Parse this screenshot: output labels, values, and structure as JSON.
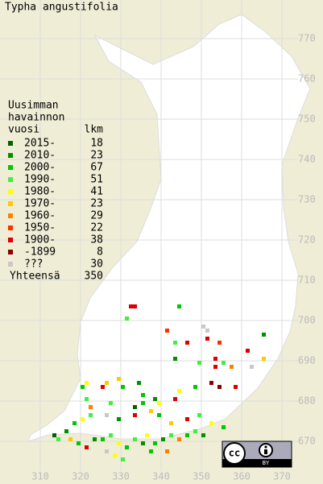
{
  "title": "Typha angustifolia",
  "legend": {
    "header": [
      "Uusimman",
      "havainnon",
      "vuosi"
    ],
    "count_header": "lkm",
    "items": [
      {
        "label": "2015-",
        "count": 18,
        "color": "#006400"
      },
      {
        "label": "2010-",
        "count": 23,
        "color": "#009000"
      },
      {
        "label": "2000-",
        "count": 67,
        "color": "#00c800"
      },
      {
        "label": "1990-",
        "count": 51,
        "color": "#40f040"
      },
      {
        "label": "1980-",
        "count": 41,
        "color": "#ffff00"
      },
      {
        "label": "1970-",
        "count": 23,
        "color": "#ffc800"
      },
      {
        "label": "1960-",
        "count": 29,
        "color": "#ff8000"
      },
      {
        "label": "1950-",
        "count": 22,
        "color": "#ff3000"
      },
      {
        "label": "1900-",
        "count": 38,
        "color": "#dd0000"
      },
      {
        "label": "-1899",
        "count": 8,
        "color": "#880000"
      },
      {
        "label": "???",
        "count": 30,
        "color": "#c8c8c8"
      }
    ],
    "total_label": "Yhteensä",
    "total": 350
  },
  "xticks": [
    310,
    320,
    330,
    340,
    350,
    360,
    370
  ],
  "yticks": [
    670,
    680,
    690,
    700,
    710,
    720,
    730,
    740,
    750,
    760,
    770
  ],
  "badge": {
    "cc": "cc",
    "by": "BY"
  },
  "squares": [
    [
      332,
      703,
      8
    ],
    [
      333,
      703,
      8
    ],
    [
      344,
      703,
      2
    ],
    [
      331,
      700,
      3
    ],
    [
      350,
      698,
      10
    ],
    [
      351,
      697,
      10
    ],
    [
      351,
      695,
      8
    ],
    [
      354,
      694,
      7
    ],
    [
      341,
      697,
      7
    ],
    [
      346,
      694,
      8
    ],
    [
      343,
      694,
      3
    ],
    [
      353,
      690,
      8
    ],
    [
      365,
      690,
      5
    ],
    [
      361,
      692,
      8
    ],
    [
      365,
      696,
      1
    ],
    [
      355,
      689,
      3
    ],
    [
      353,
      688,
      8
    ],
    [
      343,
      690,
      1
    ],
    [
      349,
      689,
      3
    ],
    [
      357,
      688,
      6
    ],
    [
      362,
      688,
      10
    ],
    [
      348,
      683,
      2
    ],
    [
      354,
      683,
      9
    ],
    [
      352,
      684,
      9
    ],
    [
      358,
      683,
      8
    ],
    [
      326,
      684,
      5
    ],
    [
      329,
      685,
      5
    ],
    [
      330,
      683,
      2
    ],
    [
      334,
      684,
      1
    ],
    [
      335,
      681,
      2
    ],
    [
      338,
      680,
      1
    ],
    [
      321,
      684,
      4
    ],
    [
      320,
      683,
      2
    ],
    [
      321,
      680,
      3
    ],
    [
      322,
      678,
      6
    ],
    [
      325,
      683,
      8
    ],
    [
      327,
      679,
      3
    ],
    [
      333,
      678,
      0
    ],
    [
      335,
      679,
      2
    ],
    [
      337,
      677,
      5
    ],
    [
      339,
      679,
      4
    ],
    [
      344,
      682,
      4
    ],
    [
      343,
      680,
      8
    ],
    [
      339,
      676,
      2
    ],
    [
      333,
      676,
      8
    ],
    [
      329,
      675,
      1
    ],
    [
      326,
      676,
      10
    ],
    [
      322,
      676,
      3
    ],
    [
      320,
      675,
      4
    ],
    [
      318,
      674,
      2
    ],
    [
      316,
      672,
      1
    ],
    [
      314,
      670,
      3
    ],
    [
      313,
      671,
      0
    ],
    [
      317,
      670,
      5
    ],
    [
      319,
      669,
      2
    ],
    [
      321,
      668,
      8
    ],
    [
      323,
      670,
      1
    ],
    [
      325,
      670,
      2
    ],
    [
      327,
      671,
      3
    ],
    [
      329,
      669,
      4
    ],
    [
      331,
      668,
      2
    ],
    [
      333,
      670,
      3
    ],
    [
      335,
      669,
      1
    ],
    [
      336,
      671,
      4
    ],
    [
      338,
      669,
      2
    ],
    [
      340,
      670,
      1
    ],
    [
      342,
      671,
      3
    ],
    [
      344,
      670,
      6
    ],
    [
      346,
      671,
      2
    ],
    [
      348,
      672,
      3
    ],
    [
      350,
      671,
      1
    ],
    [
      352,
      674,
      4
    ],
    [
      355,
      673,
      2
    ],
    [
      349,
      676,
      3
    ],
    [
      346,
      675,
      8
    ],
    [
      342,
      674,
      5
    ],
    [
      328,
      666,
      4
    ],
    [
      330,
      665,
      3
    ],
    [
      326,
      667,
      10
    ],
    [
      341,
      667,
      6
    ],
    [
      337,
      667,
      2
    ]
  ]
}
